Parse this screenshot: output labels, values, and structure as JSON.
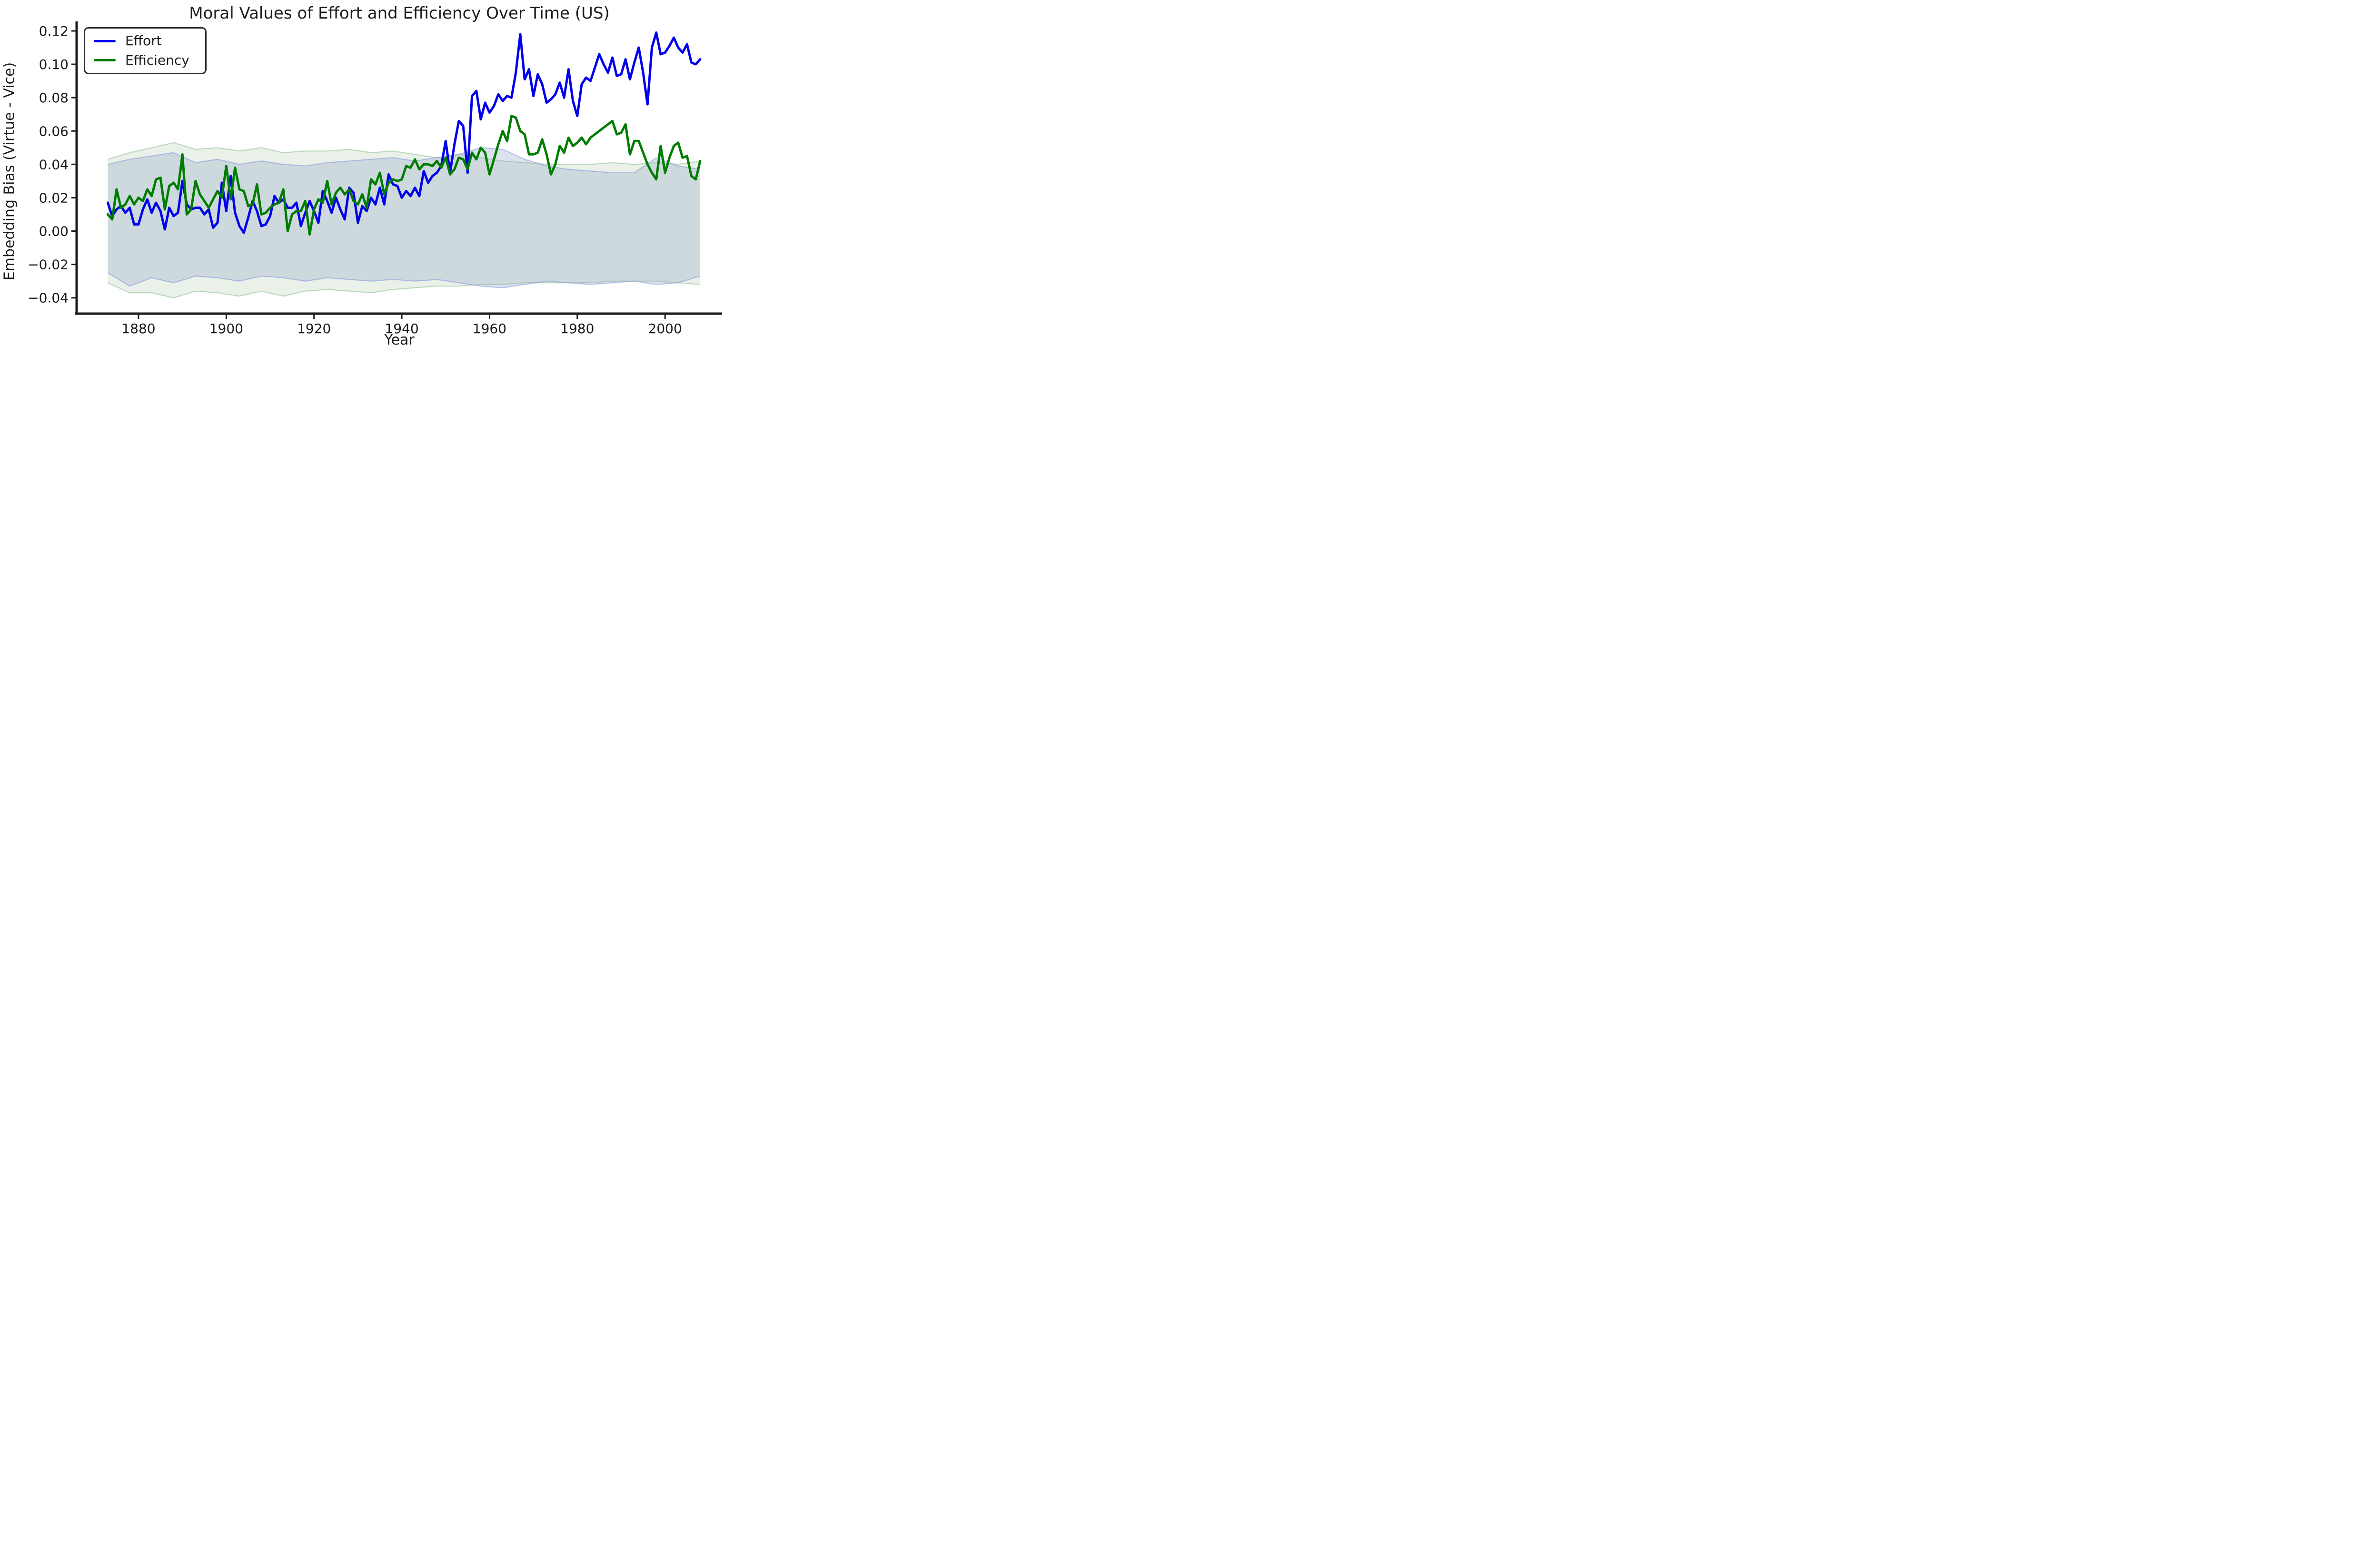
{
  "chart_data": {
    "type": "line",
    "title": "Moral Values of Effort and Efficiency Over Time (US)",
    "xlabel": "Year",
    "ylabel": "Embedding Bias (Virtue - Vice)",
    "grid": false,
    "legend_position": "upper left",
    "xlim": [
      1865.9,
      2013.0
    ],
    "ylim": [
      -0.0495,
      0.1257
    ],
    "x_ticks": [
      1880,
      1900,
      1920,
      1940,
      1960,
      1980,
      2000
    ],
    "y_ticks": [
      {
        "v": 0.12,
        "label": "0.12"
      },
      {
        "v": 0.1,
        "label": "0.10"
      },
      {
        "v": 0.08,
        "label": "0.08"
      },
      {
        "v": 0.06,
        "label": "0.06"
      },
      {
        "v": 0.04,
        "label": "0.04"
      },
      {
        "v": 0.02,
        "label": "0.02"
      },
      {
        "v": 0.0,
        "label": "0.00"
      },
      {
        "v": -0.02,
        "label": "−0.02"
      },
      {
        "v": -0.04,
        "label": "−0.04"
      }
    ],
    "year_start": 1873,
    "year_end": 2008,
    "series": [
      {
        "name": "Effort",
        "color": "#0000ee",
        "values": [
          0.017,
          0.009,
          0.013,
          0.015,
          0.011,
          0.014,
          0.004,
          0.004,
          0.013,
          0.019,
          0.011,
          0.017,
          0.012,
          0.001,
          0.014,
          0.009,
          0.011,
          0.03,
          0.016,
          0.013,
          0.014,
          0.014,
          0.01,
          0.013,
          0.002,
          0.005,
          0.029,
          0.012,
          0.033,
          0.011,
          0.003,
          -0.001,
          0.008,
          0.018,
          0.012,
          0.003,
          0.004,
          0.009,
          0.021,
          0.017,
          0.019,
          0.014,
          0.014,
          0.017,
          0.003,
          0.011,
          0.018,
          0.012,
          0.005,
          0.024,
          0.018,
          0.011,
          0.02,
          0.013,
          0.007,
          0.026,
          0.023,
          0.005,
          0.015,
          0.012,
          0.02,
          0.016,
          0.026,
          0.016,
          0.034,
          0.028,
          0.027,
          0.02,
          0.024,
          0.021,
          0.026,
          0.021,
          0.036,
          0.029,
          0.033,
          0.035,
          0.039,
          0.054,
          0.035,
          0.052,
          0.066,
          0.063,
          0.035,
          0.081,
          0.084,
          0.067,
          0.077,
          0.071,
          0.075,
          0.082,
          0.078,
          0.081,
          0.08,
          0.095,
          0.118,
          0.091,
          0.097,
          0.081,
          0.094,
          0.088,
          0.077,
          0.079,
          0.082,
          0.089,
          0.08,
          0.097,
          0.078,
          0.069,
          0.088,
          0.092,
          0.09,
          0.098,
          0.106,
          0.1,
          0.095,
          0.104,
          0.093,
          0.094,
          0.103,
          0.091,
          0.101,
          0.11,
          0.095,
          0.076,
          0.11,
          0.119,
          0.106,
          0.107,
          0.111,
          0.116,
          0.11,
          0.107,
          0.112,
          0.101,
          0.1,
          0.103
        ]
      },
      {
        "name": "Efficiency",
        "color": "#007d00",
        "values": [
          0.01,
          0.007,
          0.025,
          0.014,
          0.016,
          0.021,
          0.016,
          0.02,
          0.018,
          0.025,
          0.021,
          0.031,
          0.032,
          0.013,
          0.027,
          0.029,
          0.025,
          0.046,
          0.01,
          0.013,
          0.03,
          0.022,
          0.018,
          0.014,
          0.019,
          0.024,
          0.02,
          0.039,
          0.019,
          0.038,
          0.025,
          0.024,
          0.015,
          0.016,
          0.028,
          0.01,
          0.011,
          0.014,
          0.016,
          0.017,
          0.025,
          0.0,
          0.01,
          0.012,
          0.012,
          0.018,
          -0.002,
          0.013,
          0.019,
          0.017,
          0.03,
          0.016,
          0.023,
          0.026,
          0.022,
          0.025,
          0.018,
          0.016,
          0.022,
          0.014,
          0.031,
          0.028,
          0.035,
          0.022,
          0.029,
          0.031,
          0.03,
          0.031,
          0.039,
          0.038,
          0.043,
          0.037,
          0.04,
          0.04,
          0.039,
          0.042,
          0.038,
          0.044,
          0.034,
          0.037,
          0.044,
          0.043,
          0.037,
          0.047,
          0.043,
          0.05,
          0.047,
          0.034,
          0.043,
          0.052,
          0.06,
          0.054,
          0.069,
          0.068,
          0.06,
          0.058,
          0.046,
          0.046,
          0.047,
          0.055,
          0.046,
          0.034,
          0.04,
          0.051,
          0.047,
          0.056,
          0.051,
          0.053,
          0.056,
          0.052,
          0.056,
          0.058,
          0.06,
          0.062,
          0.064,
          0.066,
          0.058,
          0.059,
          0.064,
          0.046,
          0.054,
          0.054,
          0.047,
          0.04,
          0.035,
          0.031,
          0.051,
          0.035,
          0.044,
          0.051,
          0.053,
          0.044,
          0.045,
          0.033,
          0.031,
          0.042
        ]
      }
    ],
    "bands": [
      {
        "name": "Efficiency confidence band",
        "fill": "rgba(125,170,120,0.16)",
        "edge": "rgba(130,185,130,0.50)",
        "years": [
          1873,
          1878,
          1883,
          1888,
          1893,
          1898,
          1903,
          1908,
          1913,
          1918,
          1923,
          1928,
          1933,
          1938,
          1943,
          1948,
          1953,
          1958,
          1963,
          1968,
          1973,
          1978,
          1983,
          1988,
          1993,
          1998,
          2003,
          2008
        ],
        "hi": [
          0.043,
          0.047,
          0.05,
          0.053,
          0.049,
          0.05,
          0.048,
          0.05,
          0.047,
          0.048,
          0.048,
          0.049,
          0.047,
          0.048,
          0.046,
          0.044,
          0.046,
          0.044,
          0.042,
          0.041,
          0.04,
          0.04,
          0.04,
          0.041,
          0.04,
          0.041,
          0.04,
          0.042
        ],
        "lo": [
          -0.031,
          -0.037,
          -0.037,
          -0.04,
          -0.036,
          -0.037,
          -0.039,
          -0.036,
          -0.039,
          -0.036,
          -0.035,
          -0.036,
          -0.037,
          -0.035,
          -0.034,
          -0.033,
          -0.033,
          -0.032,
          -0.032,
          -0.031,
          -0.031,
          -0.031,
          -0.031,
          -0.03,
          -0.03,
          -0.03,
          -0.031,
          -0.032
        ]
      },
      {
        "name": "Effort confidence band",
        "fill": "rgba(144,162,196,0.30)",
        "edge": "rgba(125,140,225,0.50)",
        "years": [
          1873,
          1878,
          1883,
          1888,
          1893,
          1898,
          1903,
          1908,
          1913,
          1918,
          1923,
          1928,
          1933,
          1938,
          1943,
          1948,
          1953,
          1958,
          1963,
          1968,
          1973,
          1978,
          1983,
          1988,
          1993,
          1998,
          2003,
          2008
        ],
        "hi": [
          0.04,
          0.043,
          0.045,
          0.047,
          0.041,
          0.043,
          0.04,
          0.042,
          0.04,
          0.039,
          0.041,
          0.042,
          0.043,
          0.044,
          0.042,
          0.044,
          0.046,
          0.05,
          0.049,
          0.043,
          0.039,
          0.037,
          0.036,
          0.035,
          0.035,
          0.044,
          0.039,
          0.037
        ],
        "lo": [
          -0.025,
          -0.033,
          -0.028,
          -0.031,
          -0.027,
          -0.028,
          -0.03,
          -0.027,
          -0.028,
          -0.03,
          -0.028,
          -0.029,
          -0.03,
          -0.029,
          -0.03,
          -0.029,
          -0.031,
          -0.033,
          -0.034,
          -0.032,
          -0.03,
          -0.031,
          -0.032,
          -0.031,
          -0.03,
          -0.032,
          -0.031,
          -0.027
        ]
      }
    ],
    "axis_color": "#1c1c1c",
    "background_color": "#ffffff"
  }
}
